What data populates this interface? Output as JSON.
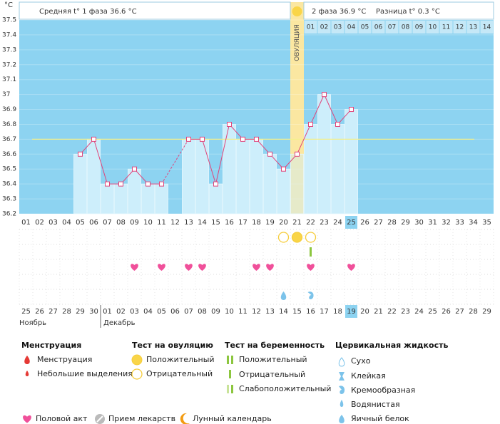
{
  "chart_data": {
    "type": "line",
    "y_label": "°C",
    "categories": [
      "01",
      "02",
      "03",
      "04",
      "05",
      "06",
      "07",
      "08",
      "09",
      "10",
      "11",
      "12",
      "13",
      "14",
      "15",
      "16",
      "17",
      "18",
      "19",
      "20",
      "21",
      "22",
      "23",
      "24",
      "25",
      "26",
      "27",
      "28",
      "29",
      "30",
      "31",
      "32",
      "33",
      "34",
      "35"
    ],
    "values": [
      null,
      null,
      null,
      null,
      36.6,
      36.7,
      36.4,
      36.4,
      36.5,
      36.4,
      36.4,
      null,
      36.7,
      36.7,
      36.4,
      36.8,
      36.7,
      36.7,
      36.6,
      36.5,
      36.6,
      36.8,
      37.0,
      36.8,
      36.9,
      null,
      null,
      null,
      null,
      null,
      null,
      null,
      null,
      null,
      null
    ],
    "color": "#e0457b",
    "bar_color": "#cdeefb",
    "background": "#8dd3f1",
    "ylim": [
      36.2,
      37.5
    ],
    "yticks": [
      36.2,
      36.3,
      36.4,
      36.5,
      36.6,
      36.7,
      36.8,
      36.9,
      37,
      37.1,
      37.2,
      37.3,
      37.4,
      37.5
    ],
    "coverline": 36.7,
    "ovulation_index": 20,
    "ovulation_label": "ОВУЛЯЦИЯ",
    "phase2_days": [
      "01",
      "02",
      "03",
      "04",
      "05",
      "06",
      "07",
      "08",
      "09",
      "10",
      "11",
      "12",
      "13",
      "14"
    ]
  },
  "header": {
    "phase1": "Средняя t° 1 фаза",
    "phase1_value": 36.6,
    "phase2": "2 фаза",
    "phase2_value": 36.9,
    "diff": "Разница t°",
    "diff_value": 0.3
  },
  "events": {
    "ovulation_test": [
      null,
      null,
      null,
      null,
      null,
      null,
      null,
      null,
      null,
      null,
      null,
      null,
      null,
      null,
      null,
      null,
      null,
      null,
      null,
      "negative",
      "positive",
      "negative",
      null,
      null,
      null,
      null,
      null,
      null,
      null,
      null,
      null,
      null,
      null,
      null,
      null
    ],
    "pregnancy_test": [
      null,
      null,
      null,
      null,
      null,
      null,
      null,
      null,
      null,
      null,
      null,
      null,
      null,
      null,
      null,
      null,
      null,
      null,
      null,
      null,
      null,
      "positive",
      null,
      null,
      null,
      null,
      null,
      null,
      null,
      null,
      null,
      null,
      null,
      null,
      null
    ],
    "sex": [
      null,
      null,
      null,
      null,
      null,
      null,
      null,
      null,
      true,
      null,
      true,
      null,
      true,
      true,
      null,
      null,
      null,
      true,
      true,
      null,
      null,
      true,
      null,
      null,
      true,
      null,
      null,
      null,
      null,
      null,
      null,
      null,
      null,
      null,
      null
    ],
    "cervical": [
      null,
      null,
      null,
      null,
      null,
      null,
      null,
      null,
      null,
      null,
      null,
      null,
      null,
      null,
      null,
      null,
      null,
      null,
      null,
      "egg_white",
      null,
      "creamy",
      null,
      null,
      null,
      null,
      null,
      null,
      null,
      null,
      null,
      null,
      null,
      null,
      null
    ]
  },
  "calendar": {
    "dates": [
      "25",
      "26",
      "27",
      "28",
      "29",
      "30",
      "01",
      "02",
      "03",
      "04",
      "05",
      "06",
      "07",
      "08",
      "09",
      "10",
      "11",
      "12",
      "13",
      "14",
      "15",
      "16",
      "17",
      "18",
      "19",
      "20",
      "21",
      "22",
      "23",
      "24",
      "25",
      "26",
      "27",
      "28",
      "29"
    ],
    "weekend": [
      false,
      false,
      false,
      false,
      true,
      true,
      false,
      false,
      false,
      false,
      false,
      true,
      true,
      false,
      false,
      false,
      false,
      false,
      true,
      true,
      false,
      false,
      false,
      false,
      false,
      true,
      true,
      false,
      false,
      false,
      false,
      false,
      true,
      true,
      false
    ],
    "months": [
      "Ноябрь",
      "Декабрь"
    ]
  },
  "legend": {
    "menstruation": {
      "title": "Менструация",
      "items": [
        "Менструация",
        "Небольшие выделения"
      ]
    },
    "ovulation": {
      "title": "Тест на овуляцию",
      "items": [
        "Положительный",
        "Отрицательный"
      ]
    },
    "pregnancy": {
      "title": "Тест на беременность",
      "items": [
        "Положительный",
        "Отрицательный",
        "Слабоположительный"
      ]
    },
    "cervical": {
      "title": "Цервикальная жидкость",
      "items": [
        "Сухо",
        "Клейкая",
        "Кремообразная",
        "Водянистая",
        "Яичный белок"
      ]
    },
    "other": [
      "Половой акт",
      "Прием лекарств",
      "Лунный календарь"
    ]
  }
}
